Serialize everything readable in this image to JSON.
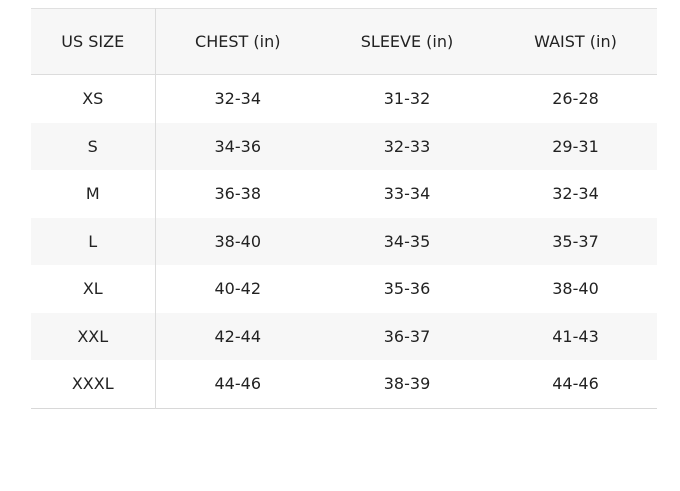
{
  "headers": [
    "US SIZE",
    "CHEST (in)",
    "SLEEVE (in)",
    "WAIST (in)"
  ],
  "rows": [
    [
      "XS",
      "32-34",
      "31-32",
      "26-28"
    ],
    [
      "S",
      "34-36",
      "32-33",
      "29-31"
    ],
    [
      "M",
      "36-38",
      "33-34",
      "32-34"
    ],
    [
      "L",
      "38-40",
      "34-35",
      "35-37"
    ],
    [
      "XL",
      "40-42",
      "35-36",
      "38-40"
    ],
    [
      "XXL",
      "42-44",
      "36-37",
      "41-43"
    ],
    [
      "XXXL",
      "44-46",
      "38-39",
      "44-46"
    ]
  ]
}
